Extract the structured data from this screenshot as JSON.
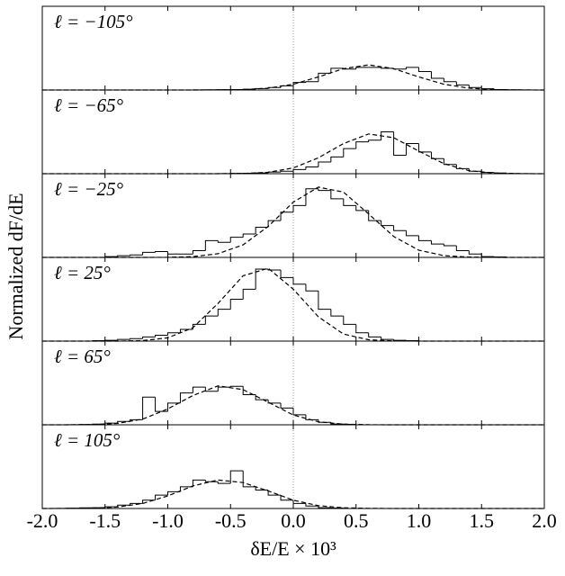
{
  "chart_data": {
    "type": "histogram",
    "xlabel": "δE/E × 10³",
    "ylabel": "Normalized dF/dE",
    "xlim": [
      -2.0,
      2.0
    ],
    "xticks": [
      {
        "value": -2.0,
        "label": "-2.0"
      },
      {
        "value": -1.5,
        "label": "-1.5"
      },
      {
        "value": -1.0,
        "label": "-1.0"
      },
      {
        "value": -0.5,
        "label": "-0.5"
      },
      {
        "value": 0.0,
        "label": "0.0"
      },
      {
        "value": 0.5,
        "label": "0.5"
      },
      {
        "value": 1.0,
        "label": "1.0"
      },
      {
        "value": 1.5,
        "label": "1.5"
      },
      {
        "value": 2.0,
        "label": "2.0"
      }
    ],
    "ylim": [
      0,
      1
    ],
    "reference_x": 0,
    "bins": [
      -2.0,
      -1.9,
      -1.8,
      -1.7,
      -1.6,
      -1.5,
      -1.4,
      -1.3,
      -1.2,
      -1.1,
      -1.0,
      -0.9,
      -0.8,
      -0.7,
      -0.6,
      -0.5,
      -0.4,
      -0.3,
      -0.2,
      -0.1,
      0.0,
      0.1,
      0.2,
      0.3,
      0.4,
      0.5,
      0.6,
      0.7,
      0.8,
      0.9,
      1.0,
      1.1,
      1.2,
      1.3,
      1.4,
      1.5,
      1.6,
      1.7,
      1.8,
      1.9,
      2.0
    ],
    "curve_x": [
      -2.0,
      -1.8,
      -1.6,
      -1.4,
      -1.2,
      -1.0,
      -0.8,
      -0.6,
      -0.4,
      -0.2,
      0.0,
      0.2,
      0.4,
      0.6,
      0.8,
      1.0,
      1.2,
      1.4,
      1.6,
      1.8,
      2.0
    ],
    "panels": [
      {
        "label": "ℓ = −105°",
        "counts": [
          0,
          0,
          0,
          0,
          0,
          0,
          0,
          0,
          0,
          0,
          0,
          0,
          0.002,
          0.003,
          0.004,
          0.005,
          0.01,
          0.018,
          0.03,
          0.05,
          0.09,
          0.1,
          0.2,
          0.26,
          0.25,
          0.27,
          0.27,
          0.26,
          0.25,
          0.27,
          0.22,
          0.14,
          0.1,
          0.06,
          0.03,
          0.015,
          0.006,
          0.003,
          0.001,
          0
        ],
        "curve": [
          0,
          0,
          0,
          0,
          0,
          0,
          0.0001,
          0.001,
          0.005,
          0.022,
          0.069,
          0.156,
          0.255,
          0.3,
          0.255,
          0.156,
          0.069,
          0.022,
          0.005,
          0.001,
          0
        ]
      },
      {
        "label": "ℓ = −65°",
        "counts": [
          0,
          0,
          0,
          0,
          0,
          0,
          0,
          0,
          0,
          0,
          0,
          0,
          0,
          0,
          0.002,
          0.004,
          0.006,
          0.01,
          0.02,
          0.03,
          0.05,
          0.08,
          0.14,
          0.2,
          0.3,
          0.38,
          0.4,
          0.5,
          0.22,
          0.36,
          0.26,
          0.18,
          0.11,
          0.06,
          0.03,
          0.015,
          0.008,
          0.003,
          0.001,
          0
        ],
        "curve": [
          0,
          0,
          0,
          0,
          0,
          0,
          0,
          0.0003,
          0.003,
          0.017,
          0.069,
          0.19,
          0.36,
          0.475,
          0.43,
          0.27,
          0.12,
          0.036,
          0.008,
          0.001,
          0
        ]
      },
      {
        "label": "ℓ = −25°",
        "counts": [
          0,
          0,
          0,
          0,
          0,
          0.01,
          0.02,
          0.03,
          0.06,
          0.07,
          0.04,
          0.04,
          0.08,
          0.2,
          0.18,
          0.24,
          0.28,
          0.36,
          0.44,
          0.54,
          0.62,
          0.82,
          0.8,
          0.7,
          0.62,
          0.56,
          0.44,
          0.38,
          0.32,
          0.26,
          0.2,
          0.16,
          0.14,
          0.08,
          0.04,
          0.01,
          0.005,
          0,
          0,
          0
        ],
        "curve": [
          0,
          0,
          0,
          0,
          0,
          0.001,
          0.009,
          0.044,
          0.15,
          0.37,
          0.66,
          0.84,
          0.78,
          0.52,
          0.25,
          0.086,
          0.021,
          0.004,
          0.0005,
          0,
          0
        ]
      },
      {
        "label": "ℓ = 25°",
        "counts": [
          0,
          0,
          0,
          0,
          0.005,
          0.01,
          0.02,
          0.03,
          0.05,
          0.07,
          0.1,
          0.14,
          0.2,
          0.3,
          0.38,
          0.5,
          0.62,
          0.86,
          0.85,
          0.76,
          0.68,
          0.6,
          0.38,
          0.3,
          0.2,
          0.1,
          0.05,
          0.02,
          0.01,
          0.005,
          0,
          0,
          0,
          0,
          0,
          0,
          0,
          0,
          0,
          0
        ],
        "curve": [
          0,
          0,
          0,
          0,
          0.006,
          0.039,
          0.16,
          0.45,
          0.78,
          0.87,
          0.62,
          0.29,
          0.084,
          0.016,
          0.002,
          0,
          0,
          0,
          0,
          0,
          0
        ]
      },
      {
        "label": "ℓ = 65°",
        "counts": [
          0,
          0,
          0.002,
          0.004,
          0.008,
          0.02,
          0.04,
          0.06,
          0.33,
          0.16,
          0.26,
          0.38,
          0.45,
          0.4,
          0.45,
          0.46,
          0.36,
          0.3,
          0.26,
          0.2,
          0.12,
          0.06,
          0.03,
          0.01,
          0.005,
          0,
          0,
          0,
          0,
          0,
          0,
          0,
          0,
          0,
          0,
          0,
          0,
          0,
          0,
          0
        ],
        "curve": [
          0,
          0,
          0.003,
          0.017,
          0.068,
          0.19,
          0.35,
          0.465,
          0.42,
          0.27,
          0.117,
          0.036,
          0.008,
          0.001,
          0,
          0,
          0,
          0,
          0,
          0,
          0
        ]
      },
      {
        "label": "ℓ = 105°",
        "counts": [
          0,
          0.002,
          0.004,
          0.008,
          0.01,
          0.02,
          0.04,
          0.06,
          0.1,
          0.16,
          0.2,
          0.26,
          0.34,
          0.32,
          0.3,
          0.45,
          0.26,
          0.22,
          0.16,
          0.1,
          0.06,
          0.03,
          0.01,
          0.005,
          0,
          0,
          0,
          0,
          0,
          0,
          0,
          0,
          0,
          0,
          0,
          0,
          0,
          0,
          0,
          0
        ],
        "curve": [
          0,
          0.001,
          0.004,
          0.018,
          0.06,
          0.15,
          0.27,
          0.34,
          0.31,
          0.21,
          0.099,
          0.034,
          0.009,
          0.002,
          0,
          0,
          0,
          0,
          0,
          0,
          0
        ]
      }
    ]
  }
}
